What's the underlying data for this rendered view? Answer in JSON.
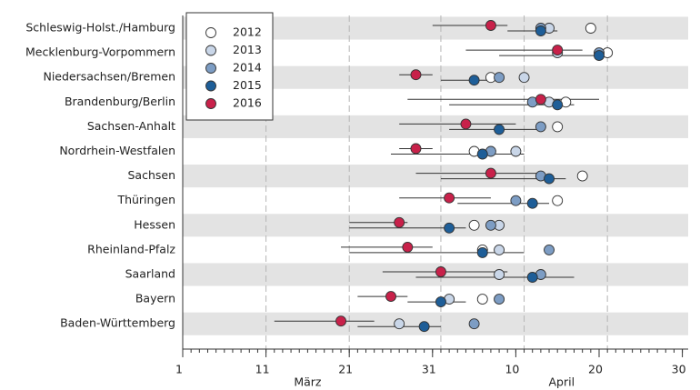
{
  "chart_data": {
    "type": "dot",
    "categories": [
      "Schleswig-Holst./Hamburg",
      "Mecklenburg-Vorpommern",
      "Niedersachsen/Bremen",
      "Brandenburg/Berlin",
      "Sachsen-Anhalt",
      "Nordrhein-Westfalen",
      "Sachsen",
      "Thüringen",
      "Hessen",
      "Rheinland-Pfalz",
      "Saarland",
      "Bayern",
      "Baden-Württemberg"
    ],
    "series": [
      {
        "name": "2012",
        "color": "#ffffff",
        "values": [
          50,
          52,
          38,
          47,
          46,
          36,
          49,
          46,
          36,
          37,
          null,
          37,
          null
        ]
      },
      {
        "name": "2013",
        "color": "#c9d6e8",
        "values": [
          45,
          46,
          42,
          45,
          null,
          41,
          null,
          null,
          39,
          39,
          39,
          33,
          27
        ]
      },
      {
        "name": "2014",
        "color": "#7d9dc4",
        "values": [
          44,
          51,
          39,
          43,
          44,
          38,
          44,
          41,
          38,
          45,
          44,
          39,
          36
        ]
      },
      {
        "name": "2015",
        "color": "#1e5e98",
        "values": [
          44,
          51,
          36,
          46,
          39,
          37,
          45,
          43,
          33,
          37,
          43,
          32,
          30
        ],
        "lower": [
          40,
          39,
          32,
          33,
          33,
          26,
          32,
          34,
          21,
          21,
          29,
          28,
          22
        ],
        "upper": [
          46,
          52,
          38,
          48,
          44,
          42,
          47,
          45,
          35,
          42,
          48,
          35,
          32
        ]
      },
      {
        "name": "2016",
        "color": "#c8214a",
        "values": [
          38,
          46,
          29,
          44,
          35,
          29,
          38,
          33,
          27,
          28,
          32,
          26,
          20
        ],
        "lower": [
          31,
          35,
          27,
          28,
          27,
          27,
          29,
          27,
          21,
          20,
          25,
          22,
          12
        ],
        "upper": [
          40,
          49,
          31,
          51,
          41,
          31,
          44,
          38,
          28,
          31,
          40,
          28,
          24
        ]
      }
    ],
    "xlim": [
      1,
      61.7
    ],
    "xticks": [
      1,
      11,
      21,
      31,
      {
        "value": 41,
        "label": "10"
      },
      {
        "value": 51,
        "label": "20"
      },
      {
        "value": 61,
        "label": "30"
      }
    ],
    "xgrid": [
      11,
      21,
      32,
      42,
      52
    ],
    "months": [
      {
        "label": "März",
        "range": [
          1,
          31
        ]
      },
      {
        "label": "April",
        "range": [
          32,
          61
        ]
      }
    ],
    "legend": "upper left"
  }
}
